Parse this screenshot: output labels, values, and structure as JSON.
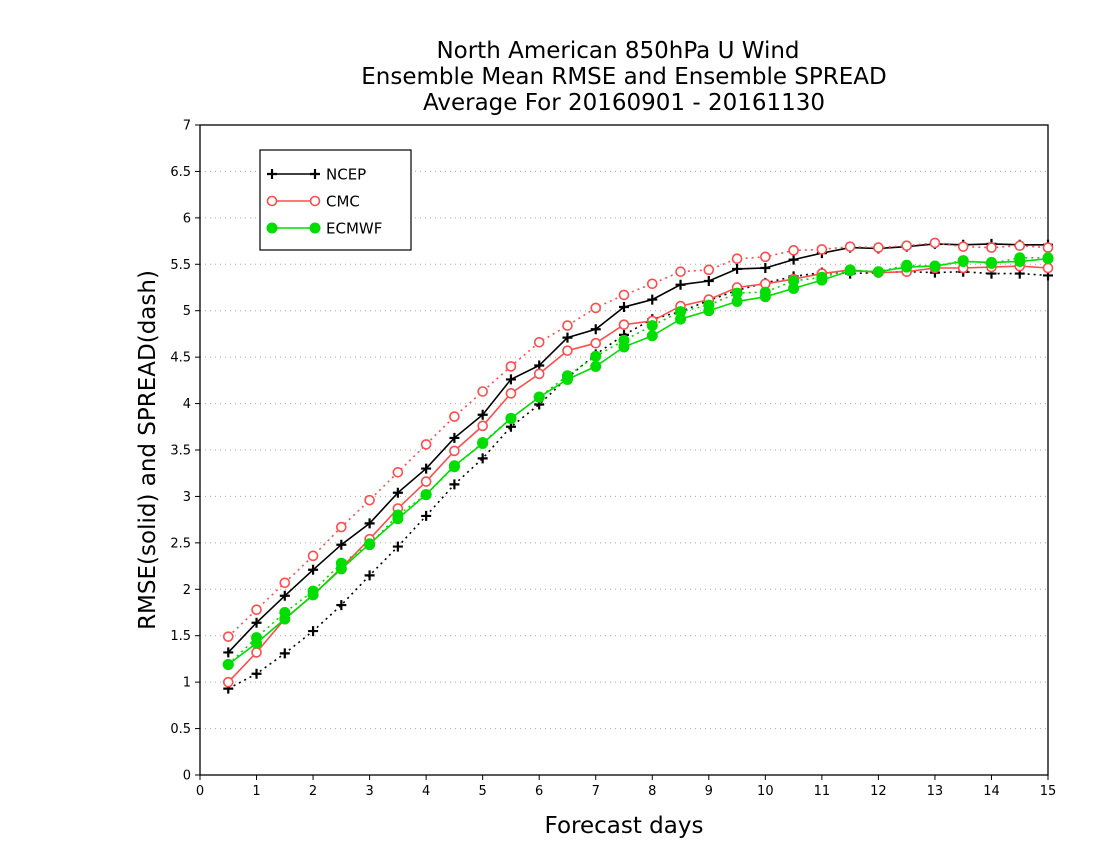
{
  "chart_data": {
    "type": "line",
    "title_lines": [
      "North American 850hPa U Wind",
      "Ensemble Mean RMSE and Ensemble SPREAD",
      "Average For 20160901 - 20161130"
    ],
    "xlabel": "Forecast days",
    "ylabel": "RMSE(solid) and SPREAD(dash)",
    "xlim": [
      0,
      15
    ],
    "ylim": [
      0,
      7
    ],
    "x_ticks": [
      "0",
      "1",
      "2",
      "3",
      "4",
      "5",
      "6",
      "7",
      "8",
      "9",
      "10",
      "11",
      "12",
      "13",
      "14",
      "15"
    ],
    "y_ticks": [
      "0",
      "0.5",
      "1",
      "1.5",
      "2",
      "2.5",
      "3",
      "3.5",
      "4",
      "4.5",
      "5",
      "5.5",
      "6",
      "6.5",
      "7"
    ],
    "grid": "dotted horizontal",
    "legend_position": "top-left",
    "x": [
      0.5,
      1,
      1.5,
      2,
      2.5,
      3,
      3.5,
      4,
      4.5,
      5,
      5.5,
      6,
      6.5,
      7,
      7.5,
      8,
      8.5,
      9,
      9.5,
      10,
      10.5,
      11,
      11.5,
      12,
      12.5,
      13,
      13.5,
      14,
      14.5,
      15
    ],
    "series": [
      {
        "name": "NCEP",
        "color": "#000000",
        "marker": "plus",
        "rmse": [
          1.32,
          1.64,
          1.93,
          2.21,
          2.48,
          2.71,
          3.04,
          3.3,
          3.63,
          3.88,
          4.26,
          4.41,
          4.71,
          4.8,
          5.04,
          5.12,
          5.28,
          5.32,
          5.45,
          5.46,
          5.55,
          5.62,
          5.68,
          5.67,
          5.69,
          5.72,
          5.71,
          5.72,
          5.71,
          5.71
        ],
        "spread": [
          0.93,
          1.09,
          1.31,
          1.55,
          1.83,
          2.15,
          2.46,
          2.79,
          3.13,
          3.41,
          3.75,
          3.99,
          4.28,
          4.53,
          4.74,
          4.91,
          4.99,
          5.11,
          5.22,
          5.3,
          5.37,
          5.41,
          5.4,
          5.41,
          5.42,
          5.41,
          5.42,
          5.4,
          5.4,
          5.38
        ]
      },
      {
        "name": "CMC",
        "color": "#ff4d4d",
        "marker": "open-circle",
        "rmse": [
          1.0,
          1.32,
          1.68,
          1.94,
          2.23,
          2.54,
          2.87,
          3.16,
          3.49,
          3.76,
          4.11,
          4.32,
          4.57,
          4.65,
          4.85,
          4.89,
          5.05,
          5.12,
          5.25,
          5.29,
          5.34,
          5.4,
          5.44,
          5.41,
          5.42,
          5.46,
          5.46,
          5.47,
          5.48,
          5.46
        ],
        "spread": [
          1.49,
          1.78,
          2.07,
          2.36,
          2.67,
          2.96,
          3.26,
          3.56,
          3.86,
          4.13,
          4.4,
          4.66,
          4.84,
          5.03,
          5.17,
          5.29,
          5.42,
          5.44,
          5.56,
          5.58,
          5.65,
          5.66,
          5.69,
          5.68,
          5.7,
          5.73,
          5.69,
          5.68,
          5.7,
          5.68
        ]
      },
      {
        "name": "ECMWF",
        "color": "#00dd00",
        "marker": "filled-circle",
        "rmse": [
          1.19,
          1.42,
          1.68,
          1.94,
          2.22,
          2.49,
          2.76,
          3.02,
          3.33,
          3.57,
          3.84,
          4.07,
          4.26,
          4.4,
          4.61,
          4.73,
          4.91,
          5.0,
          5.1,
          5.15,
          5.24,
          5.33,
          5.43,
          5.42,
          5.47,
          5.48,
          5.53,
          5.52,
          5.53,
          5.56
        ],
        "spread": [
          1.19,
          1.48,
          1.75,
          1.98,
          2.28,
          2.48,
          2.8,
          3.02,
          3.32,
          3.58,
          3.84,
          4.07,
          4.3,
          4.51,
          4.68,
          4.84,
          4.99,
          5.06,
          5.19,
          5.2,
          5.32,
          5.36,
          5.44,
          5.42,
          5.49,
          5.48,
          5.54,
          5.51,
          5.57,
          5.57
        ]
      }
    ]
  }
}
